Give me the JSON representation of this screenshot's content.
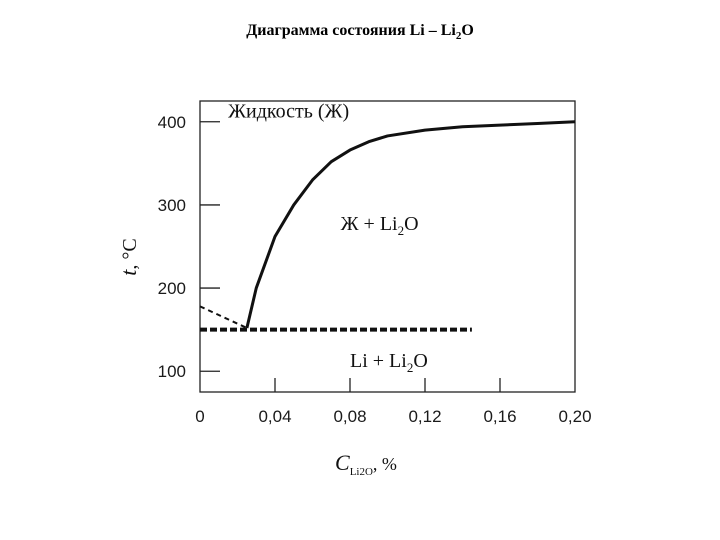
{
  "title": {
    "main": "Диаграмма состояния Li – Li",
    "sub": "2",
    "tail": "O"
  },
  "chart_data": {
    "type": "line",
    "xlabel": {
      "symbol": "C",
      "subscript": "Li2O",
      "unit": ", %"
    },
    "ylabel": {
      "symbol": "t",
      "unit": ", °C"
    },
    "xlim": [
      0,
      0.2
    ],
    "ylim": [
      75,
      425
    ],
    "x_ticks": [
      {
        "value": 0,
        "label": "0"
      },
      {
        "value": 0.04,
        "label": "0,04"
      },
      {
        "value": 0.08,
        "label": "0,08"
      },
      {
        "value": 0.12,
        "label": "0,12"
      },
      {
        "value": 0.16,
        "label": "0,16"
      },
      {
        "value": 0.2,
        "label": "0,20"
      }
    ],
    "y_ticks": [
      {
        "value": 100,
        "label": "100"
      },
      {
        "value": 200,
        "label": "200"
      },
      {
        "value": 300,
        "label": "300"
      },
      {
        "value": 400,
        "label": "400"
      }
    ],
    "series": [
      {
        "style": "solid",
        "x": [
          0.025,
          0.03,
          0.04,
          0.05,
          0.06,
          0.07,
          0.08,
          0.09,
          0.1,
          0.12,
          0.14,
          0.16,
          0.18,
          0.2
        ],
        "y": [
          152,
          200,
          262,
          300,
          330,
          352,
          366,
          376,
          383,
          390,
          394,
          396,
          398,
          400
        ]
      },
      {
        "style": "dashed",
        "x": [
          0,
          0.025
        ],
        "y": [
          178,
          152
        ]
      },
      {
        "style": "dashed-thick",
        "x": [
          0,
          0.145
        ],
        "y": [
          150,
          150
        ]
      }
    ],
    "regions": [
      {
        "text": "Жидкость (Ж)",
        "x": 0.015,
        "y": 405
      },
      {
        "text": "Ж + Li",
        "sub": "2",
        "tail": "O",
        "x": 0.075,
        "y": 270
      },
      {
        "text": "Li + Li",
        "sub": "2",
        "tail": "O",
        "x": 0.08,
        "y": 105
      }
    ]
  }
}
